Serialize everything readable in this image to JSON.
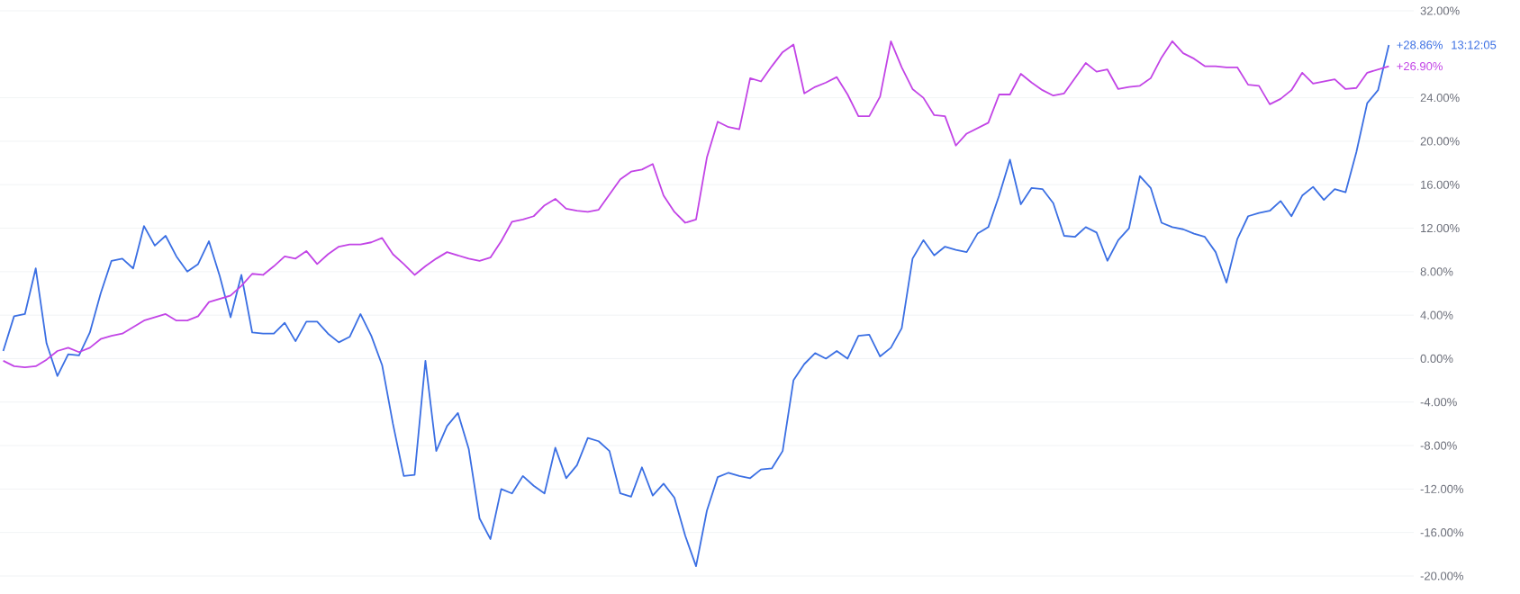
{
  "chart_data": {
    "type": "line",
    "ylim": [
      -20,
      32
    ],
    "categories": [
      null,
      null,
      null,
      null,
      null,
      null,
      null,
      null,
      null,
      null,
      null,
      null,
      null,
      null,
      null,
      null,
      null,
      null,
      null,
      null,
      null,
      null,
      null,
      null,
      null,
      null,
      null,
      null,
      null,
      null,
      null,
      null,
      null,
      null,
      null,
      null,
      null,
      null,
      null,
      null,
      null,
      null,
      null,
      null,
      null,
      null,
      null,
      null,
      null,
      null,
      null,
      null,
      null,
      null,
      null,
      null,
      null,
      null,
      null,
      null,
      null,
      null,
      null,
      null,
      null,
      null,
      null,
      null,
      null,
      null,
      null,
      null,
      null,
      null,
      null,
      null,
      null,
      null,
      null,
      null,
      null,
      null,
      null,
      null,
      null,
      null,
      null,
      null,
      null,
      null,
      null,
      null,
      null,
      null,
      null,
      null,
      null,
      null,
      null,
      null,
      null,
      null,
      null,
      null,
      null,
      null,
      null,
      null,
      null,
      null,
      null,
      null,
      null,
      null,
      null,
      null,
      null,
      null,
      null,
      null,
      null,
      null,
      null,
      null,
      null,
      null,
      null,
      null,
      null
    ],
    "yticks": [
      {
        "value": 32,
        "label": "32.00%"
      },
      {
        "value": 24,
        "label": "24.00%"
      },
      {
        "value": 20,
        "label": "20.00%"
      },
      {
        "value": 16,
        "label": "16.00%"
      },
      {
        "value": 12,
        "label": "12.00%"
      },
      {
        "value": 8,
        "label": "8.00%"
      },
      {
        "value": 4,
        "label": "4.00%"
      },
      {
        "value": 0,
        "label": "0.00%"
      },
      {
        "value": -4,
        "label": "-4.00%"
      },
      {
        "value": -8,
        "label": "-8.00%"
      },
      {
        "value": -12,
        "label": "-12.00%"
      },
      {
        "value": -16,
        "label": "-16.00%"
      },
      {
        "value": -20,
        "label": "-20.00%"
      }
    ],
    "tick_labels": "y",
    "grid": "y",
    "line_style": "solid",
    "annotations": [
      "13:12:05"
    ],
    "series": [
      {
        "color": "#3b6fe3",
        "values": [
          0.7,
          3.9,
          4.1,
          8.3,
          1.4,
          -1.6,
          0.4,
          0.3,
          2.4,
          6.0,
          9.0,
          9.2,
          8.3,
          12.2,
          10.4,
          11.3,
          9.4,
          8.0,
          8.7,
          10.8,
          7.6,
          3.8,
          7.7,
          2.4,
          2.3,
          2.3,
          3.3,
          1.6,
          3.4,
          3.4,
          2.3,
          1.5,
          2.0,
          4.1,
          2.1,
          -0.6,
          -6.0,
          -10.8,
          -10.7,
          -0.2,
          -8.5,
          -6.2,
          -5.0,
          -8.3,
          -14.7,
          -16.6,
          -12.0,
          -12.4,
          -10.8,
          -11.7,
          -12.4,
          -8.2,
          -11.0,
          -9.8,
          -7.3,
          -7.6,
          -8.5,
          -12.4,
          -12.7,
          -10.0,
          -12.6,
          -11.5,
          -12.8,
          -16.3,
          -19.1,
          -14.0,
          -10.9,
          -10.5,
          -10.8,
          -11.0,
          -10.2,
          -10.1,
          -8.5,
          -2.0,
          -0.5,
          0.5,
          0.0,
          0.7,
          0.0,
          2.1,
          2.2,
          0.2,
          1.0,
          2.8,
          9.2,
          10.9,
          9.5,
          10.3,
          10.0,
          9.8,
          11.5,
          12.1,
          15.0,
          18.3,
          14.2,
          15.7,
          15.6,
          14.3,
          11.3,
          11.2,
          12.1,
          11.6,
          9.0,
          10.9,
          12.0,
          16.8,
          15.7,
          12.5,
          12.1,
          11.9,
          11.5,
          11.2,
          9.8,
          7.0,
          11.0,
          13.1,
          13.4,
          13.6,
          14.5,
          13.1,
          15.0,
          15.8,
          14.6,
          15.6,
          15.3,
          19.0,
          23.5,
          24.7,
          28.86
        ],
        "value_labels": [
          null,
          null,
          null,
          null,
          null,
          null,
          null,
          null,
          null,
          null,
          null,
          null,
          null,
          null,
          null,
          null,
          null,
          null,
          null,
          null,
          null,
          null,
          null,
          null,
          null,
          null,
          null,
          null,
          null,
          null,
          null,
          null,
          null,
          null,
          null,
          null,
          null,
          null,
          null,
          null,
          null,
          null,
          null,
          null,
          null,
          null,
          null,
          null,
          null,
          null,
          null,
          null,
          null,
          null,
          null,
          null,
          null,
          null,
          null,
          null,
          null,
          null,
          null,
          null,
          null,
          null,
          null,
          null,
          null,
          null,
          null,
          null,
          null,
          null,
          null,
          null,
          null,
          null,
          null,
          null,
          null,
          null,
          null,
          null,
          null,
          null,
          null,
          null,
          null,
          null,
          null,
          null,
          null,
          null,
          null,
          null,
          null,
          null,
          null,
          null,
          null,
          null,
          null,
          null,
          null,
          null,
          null,
          null,
          null,
          null,
          null,
          null,
          null,
          null,
          null,
          null,
          null,
          null,
          null,
          null,
          null,
          null,
          null,
          null,
          null,
          null,
          null,
          null,
          "+28.86%"
        ]
      },
      {
        "color": "#c244e6",
        "values": [
          -0.2,
          -0.7,
          -0.8,
          -0.7,
          -0.1,
          0.7,
          1.0,
          0.6,
          1.0,
          1.8,
          2.1,
          2.3,
          2.9,
          3.5,
          3.8,
          4.1,
          3.5,
          3.5,
          3.9,
          5.2,
          5.5,
          5.8,
          6.7,
          7.8,
          7.7,
          8.5,
          9.4,
          9.2,
          9.9,
          8.7,
          9.6,
          10.3,
          10.5,
          10.5,
          10.7,
          11.1,
          9.6,
          8.7,
          7.7,
          8.5,
          9.2,
          9.8,
          9.5,
          9.2,
          9.0,
          9.3,
          10.8,
          12.6,
          12.8,
          13.1,
          14.1,
          14.7,
          13.8,
          13.6,
          13.5,
          13.7,
          15.1,
          16.5,
          17.2,
          17.4,
          17.9,
          15.0,
          13.5,
          12.5,
          12.8,
          18.5,
          21.8,
          21.3,
          21.1,
          25.8,
          25.5,
          26.9,
          28.2,
          28.9,
          24.4,
          25.0,
          25.4,
          25.9,
          24.3,
          22.3,
          22.3,
          24.1,
          29.2,
          26.8,
          24.8,
          24.0,
          22.4,
          22.3,
          19.6,
          20.7,
          21.2,
          21.7,
          24.3,
          24.3,
          26.2,
          25.4,
          24.7,
          24.2,
          24.4,
          25.8,
          27.2,
          26.4,
          26.6,
          24.8,
          25.0,
          25.1,
          25.8,
          27.7,
          29.2,
          28.1,
          27.6,
          26.9,
          26.9,
          26.8,
          26.8,
          25.2,
          25.1,
          23.4,
          23.9,
          24.7,
          26.3,
          25.3,
          25.5,
          25.7,
          24.8,
          24.9,
          26.3,
          26.6,
          26.9
        ],
        "value_labels": [
          null,
          null,
          null,
          null,
          null,
          null,
          null,
          null,
          null,
          null,
          null,
          null,
          null,
          null,
          null,
          null,
          null,
          null,
          null,
          null,
          null,
          null,
          null,
          null,
          null,
          null,
          null,
          null,
          null,
          null,
          null,
          null,
          null,
          null,
          null,
          null,
          null,
          null,
          null,
          null,
          null,
          null,
          null,
          null,
          null,
          null,
          null,
          null,
          null,
          null,
          null,
          null,
          null,
          null,
          null,
          null,
          null,
          null,
          null,
          null,
          null,
          null,
          null,
          null,
          null,
          null,
          null,
          null,
          null,
          null,
          null,
          null,
          null,
          null,
          null,
          null,
          null,
          null,
          null,
          null,
          null,
          null,
          null,
          null,
          null,
          null,
          null,
          null,
          null,
          null,
          null,
          null,
          null,
          null,
          null,
          null,
          null,
          null,
          null,
          null,
          null,
          null,
          null,
          null,
          null,
          null,
          null,
          null,
          null,
          null,
          null,
          null,
          null,
          null,
          null,
          null,
          null,
          null,
          null,
          null,
          null,
          null,
          null,
          null,
          null,
          null,
          null,
          null,
          "+26.90%"
        ]
      }
    ]
  }
}
